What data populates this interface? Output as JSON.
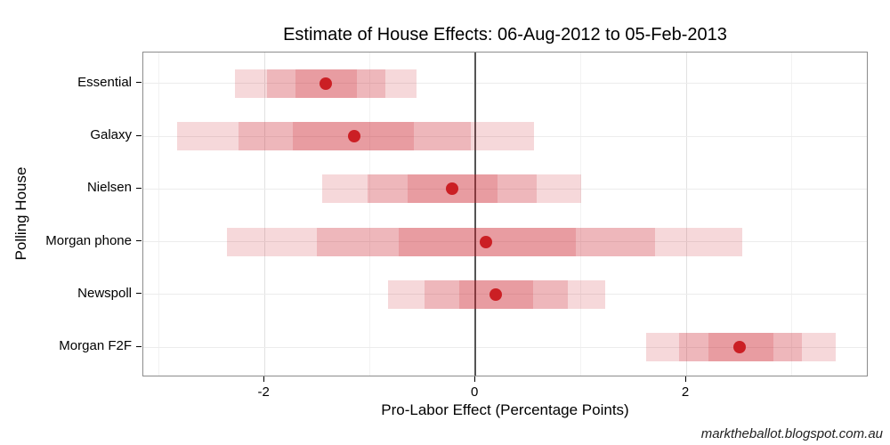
{
  "watermark": "marktheballot.blogspot.com.au",
  "chart_data": {
    "type": "scatter",
    "subtype": "dot-plot-with-nested-credible-intervals",
    "title": "Estimate of House Effects: 06-Aug-2012 to 05-Feb-2013",
    "xlabel": "Pro-Labor Effect (Percentage Points)",
    "ylabel": "Polling House",
    "xlim": [
      -3.15,
      3.73
    ],
    "x_ticks": [
      -2,
      0,
      2
    ],
    "x_minor_gridlines": [
      -3,
      -1,
      1,
      3
    ],
    "zero_reference_line": 0,
    "grid": "on",
    "legend": "none",
    "categories": [
      "Essential",
      "Galaxy",
      "Nielsen",
      "Morgan phone",
      "Newspoll",
      "Morgan F2F"
    ],
    "series": [
      {
        "name": "Essential",
        "point": -1.42,
        "outer": [
          -2.28,
          -0.56
        ],
        "mid": [
          -1.98,
          -0.85
        ],
        "inner": [
          -1.71,
          -1.12
        ]
      },
      {
        "name": "Galaxy",
        "point": -1.15,
        "outer": [
          -2.83,
          0.56
        ],
        "mid": [
          -2.25,
          -0.04
        ],
        "inner": [
          -1.73,
          -0.58
        ]
      },
      {
        "name": "Nielsen",
        "point": -0.22,
        "outer": [
          -1.45,
          1.0
        ],
        "mid": [
          -1.02,
          0.58
        ],
        "inner": [
          -0.64,
          0.21
        ]
      },
      {
        "name": "Morgan phone",
        "point": 0.1,
        "outer": [
          -2.36,
          2.53
        ],
        "mid": [
          -1.5,
          1.7
        ],
        "inner": [
          -0.73,
          0.95
        ]
      },
      {
        "name": "Newspoll",
        "point": 0.19,
        "outer": [
          -0.83,
          1.23
        ],
        "mid": [
          -0.48,
          0.88
        ],
        "inner": [
          -0.15,
          0.55
        ]
      },
      {
        "name": "Morgan F2F",
        "point": 2.51,
        "outer": [
          1.62,
          3.42
        ],
        "mid": [
          1.93,
          3.1
        ],
        "inner": [
          2.21,
          2.83
        ]
      }
    ],
    "colors": {
      "point": "#cb1f24",
      "interval_base": "#c81923",
      "interval_alpha": 0.17,
      "zero_line": "#555555",
      "gridline_major": "#e2e2e2",
      "gridline_minor": "#f2f2f2",
      "row_gridline": "#ececec",
      "panel_border": "#8c8c8c",
      "text": "#000000"
    }
  }
}
